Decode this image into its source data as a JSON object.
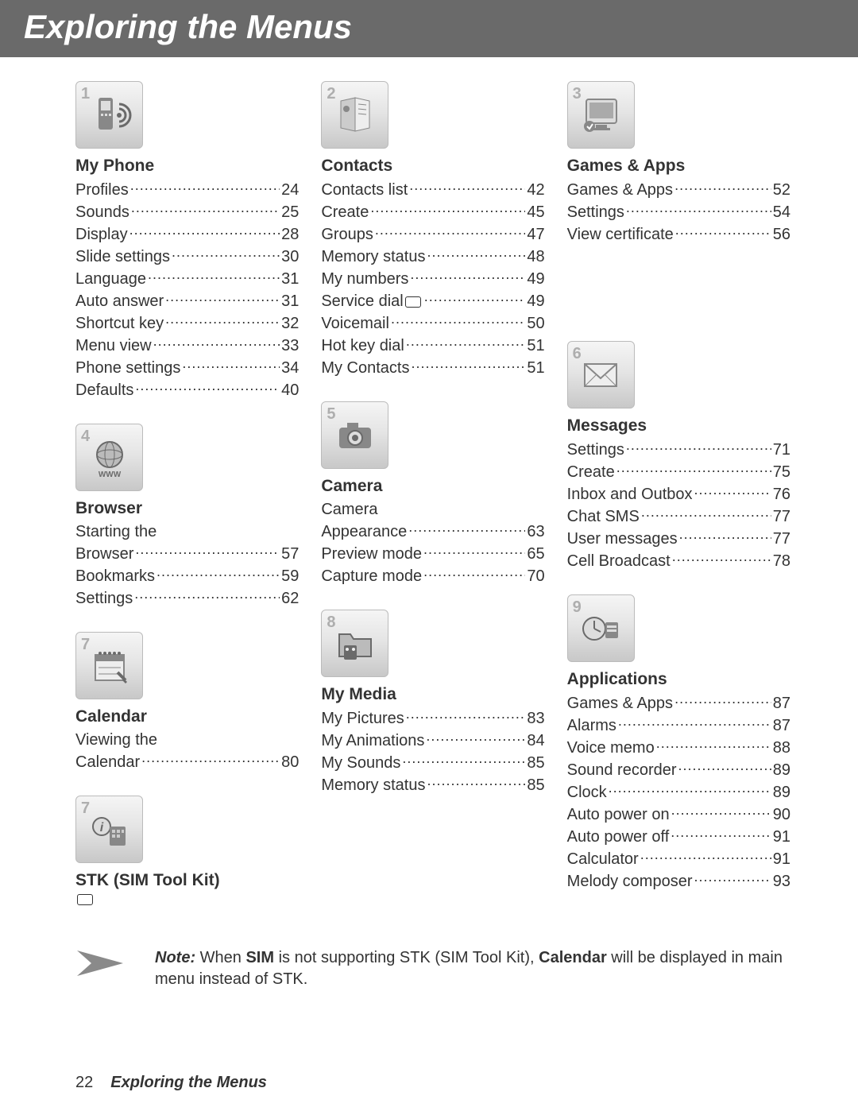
{
  "page": {
    "title": "Exploring the Menus",
    "footer_page": "22",
    "footer_title": "Exploring the Menus"
  },
  "note": {
    "prefix": "Note:",
    "t1": " When ",
    "b1": "SIM",
    "t2": " is not supporting STK (SIM Tool Kit), ",
    "b2": "Calendar",
    "t3": " will be displayed in main menu instead of STK."
  },
  "col1": [
    {
      "num": "1",
      "icon": "phone",
      "title": "My Phone",
      "items": [
        {
          "label": "Profiles",
          "page": "24"
        },
        {
          "label": "Sounds",
          "page": "25"
        },
        {
          "label": "Display",
          "page": "28"
        },
        {
          "label": "Slide settings",
          "page": "30"
        },
        {
          "label": "Language",
          "page": "31"
        },
        {
          "label": "Auto answer",
          "page": "31"
        },
        {
          "label": "Shortcut key",
          "page": "32"
        },
        {
          "label": "Menu view",
          "page": "33"
        },
        {
          "label": "Phone settings",
          "page": "34"
        },
        {
          "label": "Defaults",
          "page": "40"
        }
      ]
    },
    {
      "num": "4",
      "icon": "globe",
      "title": "Browser",
      "pre": "Starting the",
      "items": [
        {
          "label": "Browser",
          "page": "57"
        },
        {
          "label": "Bookmarks",
          "page": "59"
        },
        {
          "label": "Settings",
          "page": "62"
        }
      ]
    },
    {
      "num": "7",
      "icon": "calendar",
      "title": "Calendar",
      "pre": "Viewing the",
      "items": [
        {
          "label": "Calendar",
          "page": "80"
        }
      ]
    },
    {
      "num": "7",
      "icon": "sim",
      "title": "STK (SIM Tool Kit)",
      "sim": true,
      "items": []
    }
  ],
  "col2": [
    {
      "num": "2",
      "icon": "contacts",
      "title": "Contacts",
      "items": [
        {
          "label": "Contacts list",
          "page": "42"
        },
        {
          "label": "Create",
          "page": "45"
        },
        {
          "label": "Groups",
          "page": "47"
        },
        {
          "label": "Memory status",
          "page": "48"
        },
        {
          "label": "My numbers",
          "page": "49"
        },
        {
          "label": "Service dial",
          "page": "49",
          "sim": true
        },
        {
          "label": "Voicemail",
          "page": "50"
        },
        {
          "label": "Hot key dial",
          "page": "51"
        },
        {
          "label": "My Contacts",
          "page": "51"
        }
      ]
    },
    {
      "num": "5",
      "icon": "camera",
      "title": "Camera",
      "pre": "Camera",
      "items": [
        {
          "label": "Appearance",
          "page": "63"
        },
        {
          "label": "Preview mode",
          "page": "65"
        },
        {
          "label": "Capture mode",
          "page": "70"
        }
      ]
    },
    {
      "num": "8",
      "icon": "folder",
      "title": "My Media",
      "items": [
        {
          "label": "My Pictures",
          "page": "83"
        },
        {
          "label": "My Animations",
          "page": "84"
        },
        {
          "label": "My Sounds",
          "page": "85"
        },
        {
          "label": "Memory status",
          "page": "85"
        }
      ]
    }
  ],
  "col3": [
    {
      "num": "3",
      "icon": "monitor",
      "title": "Games & Apps",
      "items": [
        {
          "label": "Games & Apps",
          "page": "52"
        },
        {
          "label": "Settings",
          "page": "54"
        },
        {
          "label": "View certificate",
          "page": "56"
        }
      ],
      "gapAfter": 120
    },
    {
      "num": "6",
      "icon": "envelope",
      "title": "Messages",
      "items": [
        {
          "label": "Settings",
          "page": "71"
        },
        {
          "label": "Create",
          "page": "75"
        },
        {
          "label": "Inbox and Outbox",
          "page": "76"
        },
        {
          "label": "Chat SMS",
          "page": "77"
        },
        {
          "label": "User messages",
          "page": "77"
        },
        {
          "label": "Cell Broadcast",
          "page": "78"
        }
      ]
    },
    {
      "num": "9",
      "icon": "clock",
      "title": "Applications",
      "items": [
        {
          "label": "Games & Apps",
          "page": "87"
        },
        {
          "label": "Alarms",
          "page": "87"
        },
        {
          "label": "Voice memo",
          "page": "88"
        },
        {
          "label": "Sound recorder",
          "page": "89"
        },
        {
          "label": "Clock",
          "page": "89"
        },
        {
          "label": "Auto power on",
          "page": "90"
        },
        {
          "label": "Auto power off",
          "page": "91"
        },
        {
          "label": "Calculator",
          "page": "91"
        },
        {
          "label": "Melody composer",
          "page": "93"
        }
      ]
    }
  ]
}
